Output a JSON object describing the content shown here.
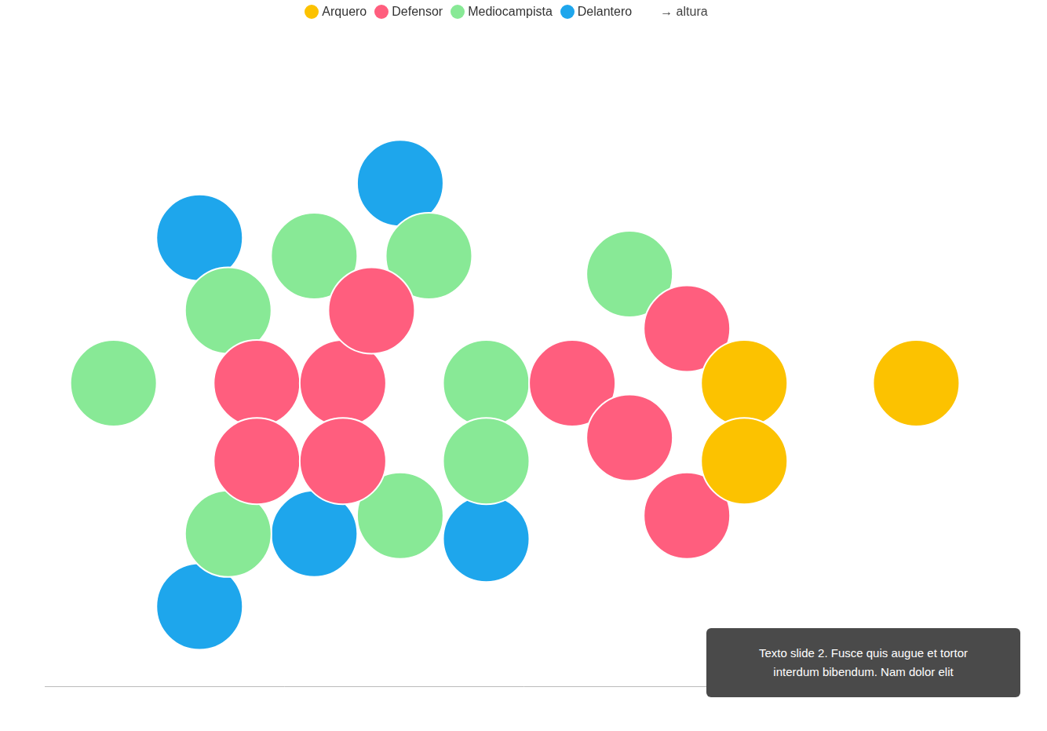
{
  "chart_data": {
    "type": "beeswarm",
    "legend": "top",
    "xlabel": "→ altura",
    "xlim": [
      164.6,
      198
    ],
    "tick_labels": false,
    "grid": false,
    "annotation": "Texto slide 2. Fusce quis augue et tortor interdum bibendum. Nam dolor elit",
    "series": [
      {
        "name": "Arquero",
        "color": "#fcc200",
        "values": [
          189,
          189,
          195
        ]
      },
      {
        "name": "Defensor",
        "color": "#ff5e7e",
        "values": [
          172,
          175,
          172,
          175,
          176,
          183,
          185,
          187,
          187
        ]
      },
      {
        "name": "Mediocampista",
        "color": "#88e996",
        "values": [
          171,
          177,
          180,
          167,
          180,
          178,
          174,
          171,
          185
        ]
      },
      {
        "name": "Delantero",
        "color": "#1ea6ec",
        "values": [
          174,
          170,
          170,
          177,
          180
        ]
      }
    ]
  }
}
